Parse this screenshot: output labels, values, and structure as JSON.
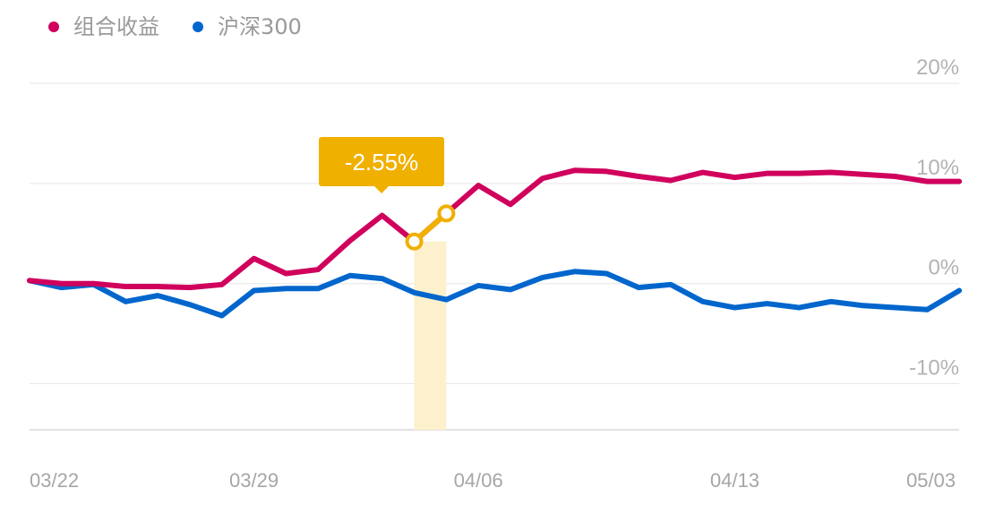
{
  "legend": [
    {
      "label": "组合收益",
      "color": "#d0005c"
    },
    {
      "label": "沪深300",
      "color": "#0066cc"
    }
  ],
  "tooltip": {
    "text": "-2.55%",
    "color": "#f0b000",
    "highlight_color": "#fdf0cc",
    "start_index": 12,
    "end_index": 13
  },
  "chart_data": {
    "type": "line",
    "ylim": [
      -14.6,
      20
    ],
    "yticks": [
      20,
      10,
      0,
      -10
    ],
    "ytick_labels": [
      "20%",
      "10%",
      "0%",
      "-10%"
    ],
    "xtick_labels": [
      "03/22",
      "03/29",
      "04/06",
      "04/13",
      "05/03"
    ],
    "xtick_indices": [
      0,
      7,
      14,
      22,
      30
    ],
    "grid": true,
    "series": [
      {
        "name": "组合收益",
        "color": "#d0005c",
        "values": [
          0.3,
          0.0,
          0.0,
          -0.3,
          -0.3,
          -0.4,
          -0.1,
          2.5,
          1.0,
          1.4,
          4.3,
          6.8,
          4.2,
          7.0,
          9.8,
          7.9,
          10.5,
          11.3,
          11.2,
          10.7,
          10.3,
          11.1,
          10.6,
          11.0,
          11.0,
          11.1,
          10.9,
          10.7,
          10.2,
          10.2
        ],
        "index_offset": 0
      },
      {
        "name": "沪深300",
        "color": "#0066cc",
        "values": [
          0.3,
          -0.4,
          -0.1,
          -1.8,
          -1.2,
          -2.1,
          -3.2,
          -0.7,
          -0.5,
          -0.5,
          0.8,
          0.5,
          -0.9,
          -1.6,
          -0.2,
          -0.6,
          0.6,
          1.2,
          1.0,
          -0.4,
          -0.1,
          -1.8,
          -2.4,
          -2.0,
          -2.4,
          -1.8,
          -2.2,
          -2.4,
          -2.6,
          -0.7
        ],
        "index_offset": 0
      }
    ]
  }
}
